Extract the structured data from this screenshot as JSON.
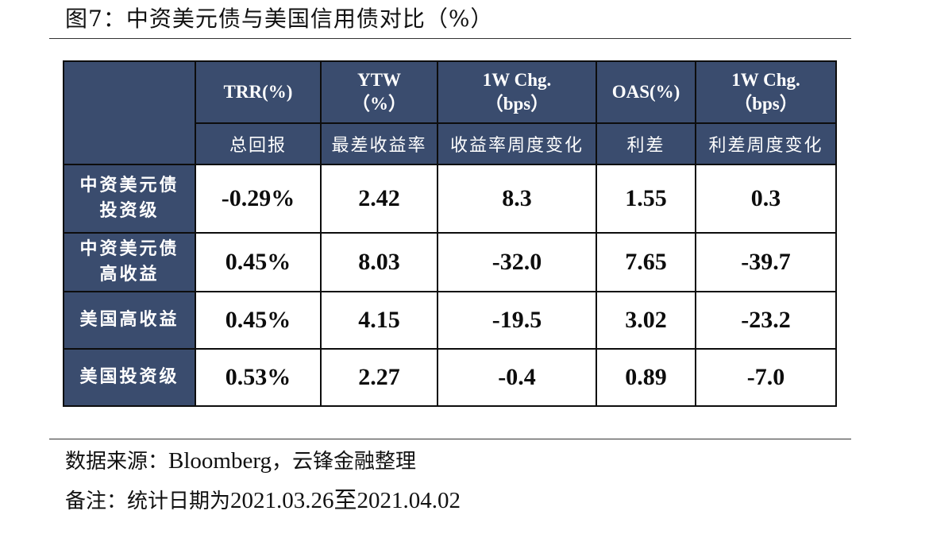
{
  "figure": {
    "title": "图7：中资美元债与美国信用债对比（%）"
  },
  "table": {
    "corner": "",
    "columns": [
      {
        "en_line1": "TRR(%)",
        "en_line2": "",
        "cn": "总回报"
      },
      {
        "en_line1": "YTW",
        "en_line2": "（%）",
        "cn": "最差收益率"
      },
      {
        "en_line1": "1W Chg.",
        "en_line2": "（bps）",
        "cn": "收益率周度变化"
      },
      {
        "en_line1": "OAS(%)",
        "en_line2": "",
        "cn": "利差"
      },
      {
        "en_line1": "1W Chg.",
        "en_line2": "（bps）",
        "cn": "利差周度变化"
      }
    ],
    "rows": [
      {
        "label_line1": "中资美元债",
        "label_line2": "投资级",
        "values": [
          "-0.29%",
          "2.42",
          "8.3",
          "1.55",
          "0.3"
        ]
      },
      {
        "label_line1": "中资美元债",
        "label_line2": "高收益",
        "values": [
          "0.45%",
          "8.03",
          "-32.0",
          "7.65",
          "-39.7"
        ]
      },
      {
        "label_line1": "美国高收益",
        "label_line2": "",
        "values": [
          "0.45%",
          "4.15",
          "-19.5",
          "3.02",
          "-23.2"
        ]
      },
      {
        "label_line1": "美国投资级",
        "label_line2": "",
        "values": [
          "0.53%",
          "2.27",
          "-0.4",
          "0.89",
          "-7.0"
        ]
      }
    ]
  },
  "footer": {
    "source_prefix": "数据来源：",
    "source_latin": "Bloomberg",
    "source_suffix": "，云锋金融整理",
    "note_prefix": "备注：统计日期为",
    "note_dates": "2021.03.26至2021.04.02"
  }
}
